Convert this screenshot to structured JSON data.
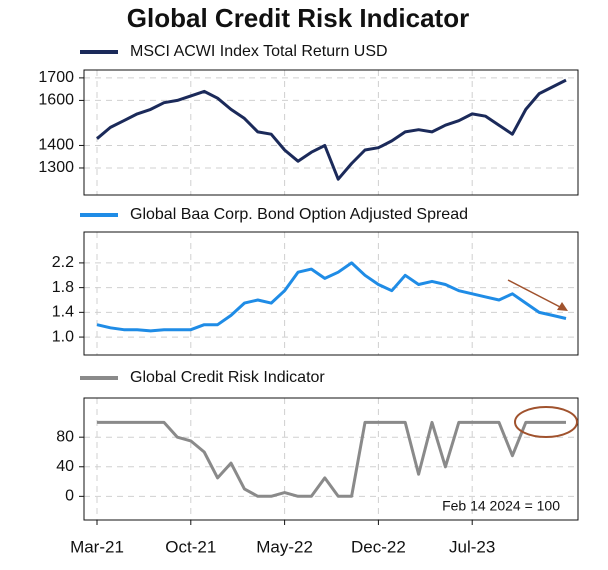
{
  "chart_data": {
    "type": "line",
    "title": "Global Credit Risk Indicator",
    "categories": [
      "Mar-21",
      null,
      null,
      null,
      null,
      null,
      null,
      "Oct-21",
      null,
      null,
      null,
      null,
      null,
      null,
      "May-22",
      null,
      null,
      null,
      null,
      null,
      null,
      "Dec-22",
      null,
      null,
      null,
      null,
      null,
      null,
      "Jul-23",
      null,
      null,
      null,
      null,
      null,
      null,
      null
    ],
    "grid": true,
    "panels": [
      {
        "series": [
          {
            "name": "MSCI ACWI Index Total Return USD",
            "color": "#1b2a5a",
            "values": [
              1430,
              1480,
              1510,
              1540,
              1560,
              1590,
              1600,
              1620,
              1640,
              1610,
              1560,
              1520,
              1460,
              1450,
              1380,
              1330,
              1370,
              1400,
              1250,
              1320,
              1380,
              1390,
              1420,
              1460,
              1470,
              1460,
              1490,
              1510,
              1540,
              1530,
              1490,
              1450,
              1560,
              1630,
              1660,
              1690
            ]
          }
        ],
        "ylim": [
          1180,
          1735
        ],
        "yticks": [
          1300,
          1400,
          1600,
          1700
        ]
      },
      {
        "series": [
          {
            "name": "Global Baa Corp. Bond Option Adjusted Spread",
            "color": "#1f8ce6",
            "values": [
              1.2,
              1.15,
              1.12,
              1.12,
              1.1,
              1.12,
              1.12,
              1.12,
              1.2,
              1.2,
              1.35,
              1.55,
              1.6,
              1.55,
              1.75,
              2.05,
              2.1,
              1.95,
              2.05,
              2.2,
              2.0,
              1.85,
              1.75,
              2.0,
              1.85,
              1.9,
              1.85,
              1.75,
              1.7,
              1.65,
              1.6,
              1.7,
              1.55,
              1.4,
              1.35,
              1.3
            ]
          }
        ],
        "ylim": [
          0.71,
          2.7
        ],
        "yticks": [
          {
            "value": 1,
            "label": "1.0"
          },
          1.4,
          1.8,
          2.2
        ]
      },
      {
        "series": [
          {
            "name": "Global Credit Risk Indicator",
            "color": "#8a8a8a",
            "values": [
              100,
              100,
              100,
              100,
              100,
              100,
              80,
              75,
              60,
              25,
              45,
              10,
              0,
              0,
              5,
              0,
              0,
              25,
              0,
              0,
              100,
              100,
              100,
              100,
              30,
              100,
              40,
              100,
              100,
              100,
              100,
              55,
              100,
              100,
              100,
              100
            ]
          }
        ],
        "ylim": [
          -32,
          133
        ],
        "yticks": [
          0,
          40,
          80
        ],
        "annotation": "Feb 14 2024 = 100"
      }
    ]
  }
}
